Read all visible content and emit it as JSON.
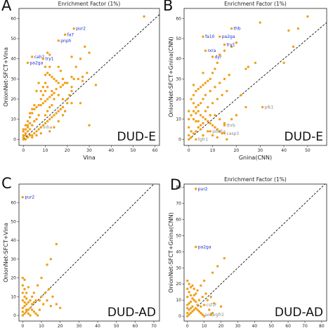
{
  "chart_data": [
    {
      "type": "scatter",
      "panel_label": "A",
      "title": "Enrichment Factor (1%)",
      "xlabel": "Vina",
      "ylabel": "OnionNet-SFCT+Vina",
      "dataset": "DUD-E",
      "xlim": [
        -2,
        62
      ],
      "ylim": [
        -3,
        65
      ],
      "xticks": [
        0,
        10,
        20,
        30,
        40,
        50,
        60
      ],
      "yticks": [
        0,
        10,
        20,
        30,
        40,
        50,
        60
      ],
      "show_title": true,
      "show_xlabel": true,
      "diagonal": true,
      "point_color": "#f0a01c",
      "points": [
        [
          55,
          61
        ],
        [
          28,
          46
        ],
        [
          30,
          43
        ],
        [
          22,
          41
        ],
        [
          26,
          40
        ],
        [
          29,
          33
        ],
        [
          27,
          31
        ],
        [
          27,
          29
        ],
        [
          25,
          30
        ],
        [
          23,
          30
        ],
        [
          22,
          26
        ],
        [
          22,
          24
        ],
        [
          20,
          28
        ],
        [
          19,
          28
        ],
        [
          18,
          27
        ],
        [
          17,
          26
        ],
        [
          16,
          28
        ],
        [
          15,
          29
        ],
        [
          14,
          30
        ],
        [
          13,
          31
        ],
        [
          12,
          32
        ],
        [
          11,
          33
        ],
        [
          10,
          32
        ],
        [
          10,
          36
        ],
        [
          12,
          36
        ],
        [
          16,
          36
        ],
        [
          17,
          34
        ],
        [
          18,
          30
        ],
        [
          15,
          25
        ],
        [
          14,
          23
        ],
        [
          13,
          22
        ],
        [
          12,
          21
        ],
        [
          11,
          20
        ],
        [
          10,
          19
        ],
        [
          9,
          18
        ],
        [
          8,
          17
        ],
        [
          7,
          17
        ],
        [
          6,
          16
        ],
        [
          5,
          15
        ],
        [
          4,
          13
        ],
        [
          3,
          11
        ],
        [
          3,
          8
        ],
        [
          2,
          6
        ],
        [
          2,
          4
        ],
        [
          1,
          3
        ],
        [
          1,
          2
        ],
        [
          0,
          1
        ],
        [
          0,
          0
        ],
        [
          0,
          2
        ],
        [
          1,
          0
        ],
        [
          2,
          1
        ],
        [
          3,
          2
        ],
        [
          4,
          2
        ],
        [
          5,
          3
        ],
        [
          6,
          4
        ],
        [
          7,
          5
        ],
        [
          8,
          6
        ],
        [
          9,
          7
        ],
        [
          10,
          8
        ],
        [
          11,
          9
        ],
        [
          12,
          10
        ],
        [
          13,
          11
        ],
        [
          14,
          12
        ],
        [
          15,
          13
        ],
        [
          16,
          14
        ],
        [
          17,
          15
        ],
        [
          18,
          16
        ],
        [
          20,
          18
        ],
        [
          14,
          20
        ],
        [
          13,
          24
        ],
        [
          11,
          26
        ],
        [
          10,
          24
        ],
        [
          9,
          22
        ],
        [
          8,
          20
        ],
        [
          7,
          12
        ],
        [
          6,
          10
        ],
        [
          5,
          9
        ],
        [
          4,
          7
        ],
        [
          3,
          5
        ],
        [
          2,
          9
        ],
        [
          1,
          7
        ],
        [
          0,
          5
        ],
        [
          0,
          4
        ],
        [
          1,
          5
        ],
        [
          2,
          7
        ],
        [
          3,
          13
        ],
        [
          4,
          15
        ],
        [
          5,
          17
        ],
        [
          20,
          20
        ],
        [
          21,
          22
        ],
        [
          22,
          31
        ],
        [
          24,
          36
        ],
        [
          30,
          7
        ],
        [
          33,
          27
        ],
        [
          11,
          43
        ],
        [
          12,
          42
        ],
        [
          7,
          28
        ],
        [
          6,
          24
        ],
        [
          8,
          24
        ],
        [
          9,
          26
        ],
        [
          10,
          28
        ],
        [
          16,
          22
        ],
        [
          18,
          20
        ],
        [
          22,
          18
        ],
        [
          26,
          18
        ],
        [
          8,
          3
        ],
        [
          6,
          2
        ],
        [
          4,
          1
        ],
        [
          12,
          4
        ],
        [
          14,
          6
        ],
        [
          16,
          9
        ],
        [
          18,
          12
        ],
        [
          19,
          14
        ],
        [
          10,
          12
        ],
        [
          11,
          14
        ],
        [
          12,
          16
        ],
        [
          13,
          17
        ]
      ],
      "highlighted_points": [
        {
          "label": "pur2",
          "x": 23,
          "y": 55,
          "color": "#1a2fcc"
        },
        {
          "label": "fa7",
          "x": 19,
          "y": 52,
          "color": "#1a2fcc"
        },
        {
          "label": "pnph",
          "x": 16,
          "y": 49,
          "color": "#1a2fcc"
        },
        {
          "label": "cah2",
          "x": 4,
          "y": 41,
          "color": "#1a2fcc"
        },
        {
          "label": "try1",
          "x": 9,
          "y": 40,
          "color": "#1a2fcc"
        },
        {
          "label": "pa2ga",
          "x": 2,
          "y": 38,
          "color": "#1a2fcc"
        },
        {
          "label": "inha",
          "x": 8,
          "y": 6,
          "color": "#888888"
        }
      ]
    },
    {
      "type": "scatter",
      "panel_label": "B",
      "title": "Enrichment Factor (1%)",
      "xlabel": "Gnina(CNN)",
      "ylabel": "OnionNet-SFCT+Gnina(CNN)",
      "dataset": "DUD-E",
      "xlim": [
        -2,
        58
      ],
      "ylim": [
        -3,
        65
      ],
      "xticks": [
        0,
        10,
        20,
        30,
        40,
        50
      ],
      "yticks": [
        0,
        10,
        20,
        30,
        40,
        50,
        60
      ],
      "show_title": true,
      "show_xlabel": true,
      "diagonal": true,
      "point_color": "#f0a01c",
      "points": [
        [
          50,
          61
        ],
        [
          46,
          55
        ],
        [
          42,
          54
        ],
        [
          44,
          46
        ],
        [
          40,
          38
        ],
        [
          30,
          58
        ],
        [
          28,
          38
        ],
        [
          25,
          36
        ],
        [
          24,
          35
        ],
        [
          20,
          48
        ],
        [
          18,
          46
        ],
        [
          15,
          44
        ],
        [
          13,
          42
        ],
        [
          12,
          38
        ],
        [
          11,
          35
        ],
        [
          10,
          33
        ],
        [
          9,
          30
        ],
        [
          8,
          29
        ],
        [
          7,
          28
        ],
        [
          6,
          27
        ],
        [
          5,
          26
        ],
        [
          4,
          25
        ],
        [
          3,
          24
        ],
        [
          2,
          22
        ],
        [
          1,
          20
        ],
        [
          2,
          18
        ],
        [
          3,
          16
        ],
        [
          4,
          14
        ],
        [
          5,
          12
        ],
        [
          6,
          11
        ],
        [
          7,
          10
        ],
        [
          8,
          9
        ],
        [
          9,
          8
        ],
        [
          10,
          7
        ],
        [
          11,
          6
        ],
        [
          12,
          5
        ],
        [
          13,
          4
        ],
        [
          14,
          3
        ],
        [
          0,
          0
        ],
        [
          0,
          2
        ],
        [
          1,
          1
        ],
        [
          2,
          3
        ],
        [
          3,
          4
        ],
        [
          4,
          6
        ],
        [
          5,
          7
        ],
        [
          6,
          8
        ],
        [
          1,
          12
        ],
        [
          2,
          14
        ],
        [
          0,
          10
        ],
        [
          0,
          6
        ],
        [
          1,
          4
        ],
        [
          3,
          9
        ],
        [
          5,
          18
        ],
        [
          7,
          22
        ],
        [
          9,
          24
        ],
        [
          11,
          26
        ],
        [
          13,
          28
        ],
        [
          15,
          30
        ],
        [
          17,
          32
        ],
        [
          8,
          16
        ],
        [
          10,
          18
        ],
        [
          12,
          20
        ],
        [
          14,
          22
        ],
        [
          16,
          24
        ],
        [
          6,
          20
        ],
        [
          4,
          17
        ],
        [
          3,
          13
        ],
        [
          7,
          14
        ],
        [
          11,
          12
        ],
        [
          13,
          10
        ],
        [
          15,
          8
        ],
        [
          2,
          27
        ],
        [
          6,
          33
        ],
        [
          22,
          22
        ],
        [
          24,
          16
        ],
        [
          20,
          12
        ],
        [
          18,
          10
        ],
        [
          9,
          12
        ],
        [
          5,
          5
        ],
        [
          0,
          14
        ],
        [
          2,
          10
        ],
        [
          4,
          9
        ],
        [
          8,
          4
        ],
        [
          10,
          2
        ],
        [
          12,
          1
        ],
        [
          16,
          0
        ],
        [
          6,
          2
        ]
      ],
      "highlighted_points": [
        {
          "label": "thb",
          "x": 18,
          "y": 55,
          "color": "#1a2fcc"
        },
        {
          "label": "pa2ga",
          "x": 13,
          "y": 51,
          "color": "#1a2fcc"
        },
        {
          "label": "fa10",
          "x": 6,
          "y": 51,
          "color": "#1a2fcc"
        },
        {
          "label": "try1",
          "x": 15,
          "y": 47,
          "color": "#1a2fcc"
        },
        {
          "label": "rxra",
          "x": 7,
          "y": 44,
          "color": "#1a2fcc"
        },
        {
          "label": "dyr",
          "x": 10,
          "y": 41,
          "color": "#1a2fcc"
        },
        {
          "label": "plk1",
          "x": 31,
          "y": 16,
          "color": "#888888"
        },
        {
          "label": "thrb",
          "x": 15,
          "y": 7,
          "color": "#888888"
        },
        {
          "label": "pde5a",
          "x": 9,
          "y": 4,
          "color": "#888888"
        },
        {
          "label": "casp3",
          "x": 15,
          "y": 3,
          "color": "#888888"
        },
        {
          "label": "fgfr1",
          "x": 3,
          "y": 0,
          "color": "#888888"
        }
      ]
    },
    {
      "type": "scatter",
      "panel_label": "C",
      "title": "Enrichment Factor (1%)",
      "xlabel": "",
      "ylabel": "OnionNet-SFCT+Vina",
      "dataset": "DUD-AD",
      "xlim": [
        -2,
        73
      ],
      "ylim": [
        -3,
        70
      ],
      "xticks": [
        0,
        10,
        20,
        30,
        40,
        50,
        60,
        70
      ],
      "yticks": [
        0,
        10,
        20,
        30,
        40,
        50,
        60
      ],
      "show_title": false,
      "show_xlabel": false,
      "diagonal": true,
      "point_color": "#f0a01c",
      "points": [
        [
          18,
          38
        ],
        [
          15,
          30
        ],
        [
          13,
          27
        ],
        [
          10,
          20
        ],
        [
          8,
          16
        ],
        [
          6,
          12
        ],
        [
          5,
          10
        ],
        [
          4,
          8
        ],
        [
          3,
          7
        ],
        [
          2,
          6
        ],
        [
          1,
          5
        ],
        [
          0,
          4
        ],
        [
          0,
          0
        ],
        [
          0,
          2
        ],
        [
          1,
          1
        ],
        [
          2,
          2
        ],
        [
          3,
          3
        ],
        [
          4,
          4
        ],
        [
          5,
          3
        ],
        [
          6,
          2
        ],
        [
          7,
          1
        ],
        [
          8,
          0
        ],
        [
          0,
          8
        ],
        [
          0,
          12
        ],
        [
          1,
          14
        ],
        [
          0,
          16
        ],
        [
          1,
          10
        ],
        [
          2,
          12
        ],
        [
          3,
          15
        ],
        [
          1,
          19
        ],
        [
          0,
          20
        ],
        [
          10,
          10
        ],
        [
          12,
          12
        ],
        [
          14,
          14
        ],
        [
          9,
          8
        ],
        [
          11,
          6
        ],
        [
          15,
          5
        ],
        [
          18,
          6
        ],
        [
          20,
          4
        ],
        [
          2,
          3
        ],
        [
          3,
          1
        ],
        [
          4,
          0
        ],
        [
          5,
          6
        ],
        [
          6,
          7
        ],
        [
          7,
          8
        ],
        [
          9,
          3
        ],
        [
          13,
          8
        ],
        [
          16,
          10
        ],
        [
          1,
          7
        ],
        [
          2,
          9
        ]
      ],
      "highlighted_points": [
        {
          "label": "pur2",
          "x": 0,
          "y": 63,
          "color": "#1a2fcc"
        }
      ]
    },
    {
      "type": "scatter",
      "panel_label": "D",
      "title": "Enrichment Factor (1%)",
      "xlabel": "",
      "ylabel": "OnionNet-SFCT+Gnina(CNN)",
      "dataset": "DUD-AD",
      "xlim": [
        -2,
        83
      ],
      "ylim": [
        -3,
        82
      ],
      "xticks": [
        0,
        10,
        20,
        30,
        40,
        50,
        60,
        70,
        80
      ],
      "yticks": [
        0,
        10,
        20,
        30,
        40,
        50,
        60,
        70,
        80
      ],
      "show_title": true,
      "show_xlabel": false,
      "diagonal": true,
      "point_color": "#f0a01c",
      "points": [
        [
          22,
          36
        ],
        [
          18,
          31
        ],
        [
          15,
          27
        ],
        [
          10,
          22
        ],
        [
          8,
          19
        ],
        [
          6,
          16
        ],
        [
          5,
          14
        ],
        [
          4,
          13
        ],
        [
          3,
          11
        ],
        [
          2,
          9
        ],
        [
          1,
          8
        ],
        [
          0,
          7
        ],
        [
          0,
          0
        ],
        [
          0,
          2
        ],
        [
          1,
          1
        ],
        [
          2,
          2
        ],
        [
          3,
          3
        ],
        [
          4,
          4
        ],
        [
          5,
          5
        ],
        [
          6,
          4
        ],
        [
          7,
          3
        ],
        [
          8,
          2
        ],
        [
          9,
          1
        ],
        [
          10,
          0
        ],
        [
          0,
          12
        ],
        [
          1,
          15
        ],
        [
          0,
          17
        ],
        [
          2,
          18
        ],
        [
          1,
          20
        ],
        [
          0,
          22
        ],
        [
          3,
          19
        ],
        [
          4,
          17
        ],
        [
          12,
          10
        ],
        [
          14,
          12
        ],
        [
          16,
          8
        ],
        [
          20,
          6
        ],
        [
          5,
          9
        ],
        [
          7,
          10
        ],
        [
          9,
          12
        ],
        [
          11,
          14
        ],
        [
          2,
          5
        ],
        [
          3,
          6
        ],
        [
          1,
          4
        ],
        [
          0,
          5
        ],
        [
          6,
          7
        ],
        [
          8,
          6
        ],
        [
          13,
          4
        ],
        [
          15,
          2
        ],
        [
          4,
          10
        ],
        [
          2,
          13
        ]
      ],
      "highlighted_points": [
        {
          "label": "pur2",
          "x": 5,
          "y": 79,
          "color": "#1a2fcc"
        },
        {
          "label": "pa2ga",
          "x": 5,
          "y": 43,
          "color": "#1a2fcc"
        },
        {
          "label": "csf1r",
          "x": 10,
          "y": 7,
          "color": "#888888"
        },
        {
          "label": "aofb",
          "x": 9,
          "y": 1,
          "color": "#888888"
        },
        {
          "label": "vgfr2",
          "x": 14,
          "y": 1,
          "color": "#888888"
        }
      ]
    }
  ]
}
